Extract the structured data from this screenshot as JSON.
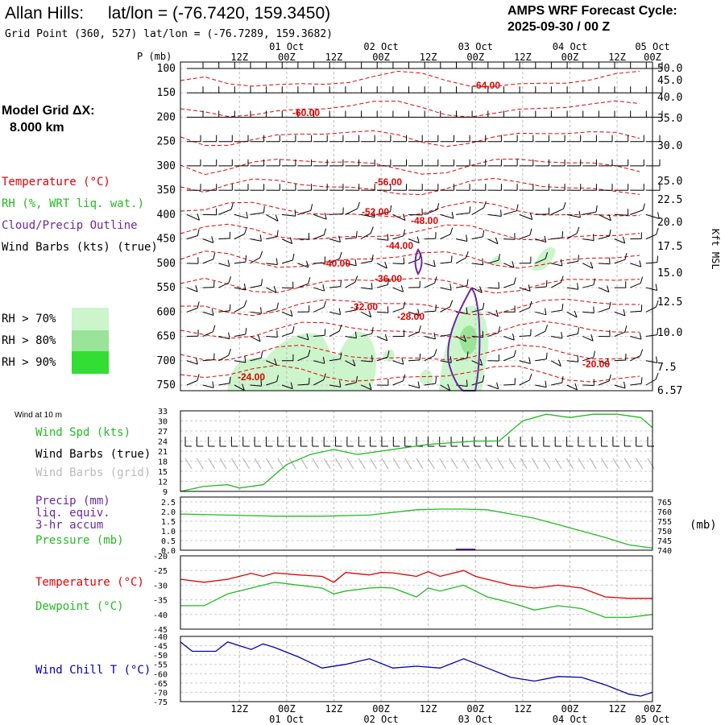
{
  "header": {
    "station": "Allan Hills:",
    "station_coords": "lat/lon = (-76.7420, 159.3450)",
    "grid_point": "Grid Point (360, 527) lat/lon = (-76.7289, 159.3682)",
    "cycle_label": "AMPS WRF Forecast Cycle:",
    "cycle_value": "2025-09-30 / 00  Z",
    "model_grid_label": "Model Grid ΔX:",
    "model_grid_value": "8.000 km"
  },
  "colors": {
    "temperature": "#e00000",
    "rh": "#22bb22",
    "cloud": "#6a2aa0",
    "wind_chill": "#0000aa",
    "rh70": "#ccf5cc",
    "rh80": "#99e499",
    "rh90": "#33dd33"
  },
  "legend": {
    "temperature": "Temperature (°C)",
    "rh": "RH (%, WRT liq. wat.)",
    "cloud": "Cloud/Precip Outline",
    "wind": "Wind Barbs (kts) (true)",
    "rh70": "RH > 70%",
    "rh80": "RH > 80%",
    "rh90": "RH > 90%",
    "p_axis": "P (mb)",
    "kft_label": "Kft MSL",
    "wind10m": "Wind at 10 m",
    "wind_spd": "Wind Spd (kts)",
    "barbs_true": "Wind Barbs (true)",
    "barbs_grid": "Wind Barbs (grid)",
    "precip_a": "Precip (mm)",
    "precip_b": "liq. equiv.",
    "precip_c": "3-hr accum",
    "pressure": "Pressure (mb)",
    "mb_unit": "(mb)",
    "temp2m": "Temperature (°C)",
    "dewpoint": "Dewpoint (°C)",
    "windchill": "Wind Chill T (°C)"
  },
  "chart_data": [
    {
      "type": "line",
      "name": "upper-air cross-section",
      "time_labels": [
        "12Z",
        "00Z",
        "12Z",
        "00Z",
        "12Z",
        "00Z",
        "12Z",
        "00Z",
        "12Z",
        "00Z"
      ],
      "date_labels": [
        "01 Oct",
        "02 Oct",
        "03 Oct",
        "04 Oct",
        "05 Oct"
      ],
      "pressure_ticks": [
        "100",
        "150",
        "200",
        "250",
        "300",
        "350",
        "400",
        "450",
        "500",
        "550",
        "600",
        "650",
        "700",
        "750"
      ],
      "kft_ticks": [
        "50.0",
        "45.0",
        "40.0",
        "35.0",
        "30.0",
        "25.0",
        "22.5",
        "20.0",
        "17.5",
        "15.0",
        "12.5",
        "10.0",
        "7.5",
        "6.57"
      ],
      "temp_labels": [
        "-64.00",
        "-60.00",
        "-56.00",
        "-52.00",
        "-48.00",
        "-44.00",
        "-40.00",
        "-36.00",
        "-32.00",
        "-28.00",
        "-24.00",
        "-20.00"
      ]
    },
    {
      "type": "line",
      "name": "10m wind speed",
      "ylabel": "Wind Spd (kts)",
      "yticks": [
        "33",
        "30",
        "27",
        "24",
        "21",
        "18",
        "15",
        "12",
        "9"
      ],
      "ylim": [
        9,
        33
      ],
      "x_hours": [
        0,
        6,
        12,
        15,
        21,
        27,
        33,
        39,
        45,
        51,
        57,
        63,
        69,
        75,
        81,
        87,
        93,
        99,
        105,
        111,
        117,
        120
      ],
      "values": [
        9,
        10.5,
        11,
        10,
        11,
        17,
        20,
        21.5,
        20,
        21,
        22,
        23,
        23.5,
        24,
        24,
        30,
        32,
        31,
        32,
        32,
        31,
        28
      ]
    },
    {
      "type": "line",
      "name": "surface pressure",
      "ylabel": "Pressure (mb)",
      "right_ticks": [
        "765",
        "760",
        "755",
        "750",
        "745",
        "740"
      ],
      "left_ticks": [
        "2.5",
        "2.0",
        "1.5",
        "1.0",
        "0.5",
        "0.0"
      ],
      "ylim": [
        740,
        765
      ],
      "x_hours": [
        0,
        12,
        24,
        36,
        48,
        60,
        66,
        72,
        78,
        84,
        90,
        96,
        102,
        108,
        114,
        120
      ],
      "values": [
        757,
        756.5,
        756,
        756,
        756.5,
        759,
        759.3,
        759.3,
        759,
        757,
        755,
        752,
        749,
        746,
        742.5,
        741
      ],
      "precip_mm": {
        "x_hours": [
          70,
          75
        ],
        "value": 0.02
      }
    },
    {
      "type": "line",
      "name": "2m temperature and dewpoint",
      "yticks": [
        "-20",
        "-25",
        "-30",
        "-35",
        "-40",
        "-45"
      ],
      "ylim": [
        -45,
        -20
      ],
      "x_hours": [
        0,
        6,
        12,
        18,
        21,
        24,
        30,
        36,
        39,
        42,
        48,
        51,
        54,
        60,
        63,
        66,
        72,
        75,
        78,
        84,
        90,
        96,
        102,
        108,
        114,
        120
      ],
      "series": [
        {
          "name": "Temperature",
          "values": [
            -28,
            -29,
            -28,
            -26,
            -27,
            -25.8,
            -26.5,
            -27,
            -29,
            -25.7,
            -26.5,
            -25.7,
            -25.8,
            -27,
            -25.4,
            -27,
            -25,
            -27,
            -28,
            -30,
            -31,
            -30,
            -31,
            -34,
            -34.5,
            -34.5
          ]
        },
        {
          "name": "Dewpoint",
          "values": [
            -37,
            -37,
            -33,
            -31,
            -30,
            -29,
            -30,
            -31,
            -33,
            -32,
            -31,
            -30.8,
            -31,
            -34,
            -31,
            -32,
            -30,
            -32,
            -34,
            -36,
            -38.5,
            -37,
            -38,
            -41,
            -41,
            -40
          ]
        }
      ]
    },
    {
      "type": "line",
      "name": "wind chill",
      "ylabel": "Wind Chill T (°C)",
      "yticks": [
        "-40",
        "-45",
        "-50",
        "-55",
        "-60",
        "-65",
        "-70",
        "-75"
      ],
      "ylim": [
        -75,
        -40
      ],
      "x_hours": [
        0,
        3,
        9,
        12,
        18,
        21,
        24,
        30,
        36,
        42,
        48,
        54,
        60,
        66,
        72,
        78,
        84,
        90,
        96,
        102,
        108,
        114,
        117,
        120
      ],
      "values": [
        -43,
        -48,
        -48,
        -43,
        -47,
        -44,
        -46,
        -51,
        -57,
        -55,
        -52,
        -57,
        -56,
        -57,
        -52,
        -57,
        -62,
        -64,
        -61.5,
        -62,
        -66,
        -71,
        -72,
        -70
      ]
    }
  ]
}
